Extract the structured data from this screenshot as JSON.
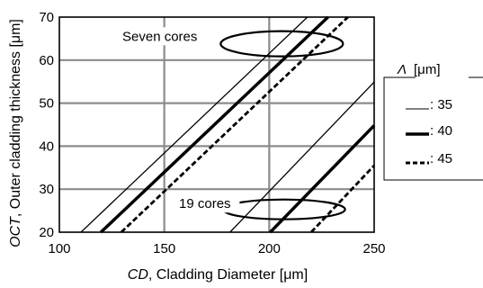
{
  "chart_data": {
    "type": "line",
    "title": "",
    "xlabel_italic": "CD",
    "xlabel_rest": ", Cladding Diameter [μm]",
    "ylabel_italic": "OCT",
    "ylabel_rest": ", Outer cladding thickness [μm]",
    "xlim": [
      100,
      250
    ],
    "ylim": [
      20,
      70
    ],
    "xticks": [
      100,
      150,
      200,
      250
    ],
    "yticks": [
      20,
      30,
      40,
      50,
      60,
      70
    ],
    "grid": true,
    "legend": {
      "title_symbol": "Λ",
      "title_unit": "[μm]",
      "placement": "right-outside",
      "entries": [
        {
          "label": ": 35",
          "style": "thin"
        },
        {
          "label": ": 40",
          "style": "thick"
        },
        {
          "label": ": 45",
          "style": "dashed"
        }
      ]
    },
    "groups": [
      {
        "label": "Seven cores",
        "series": [
          {
            "name": "35",
            "x": [
              110.3,
              218.2
            ],
            "y": [
              20,
              70
            ]
          },
          {
            "name": "40",
            "x": [
              119.8,
              228.0
            ],
            "y": [
              20,
              70
            ]
          },
          {
            "name": "45",
            "x": [
              129.5,
              237.5
            ],
            "y": [
              20,
              70
            ]
          }
        ]
      },
      {
        "label": "19 cores",
        "series": [
          {
            "name": "35",
            "x": [
              181.3,
              250.0
            ],
            "y": [
              20,
              54.9
            ]
          },
          {
            "name": "40",
            "x": [
              200.5,
              250.0
            ],
            "y": [
              20,
              44.8
            ]
          },
          {
            "name": "45",
            "x": [
              220.0,
              250.0
            ],
            "y": [
              20,
              35.5
            ]
          }
        ]
      }
    ],
    "annotations": [
      {
        "text": "Seven cores",
        "x": 130,
        "y": 64.5,
        "ellipse_center": [
          206,
          63.8
        ]
      },
      {
        "text": "19 cores",
        "x": 157,
        "y": 25.6,
        "ellipse_center": [
          207,
          25.3
        ]
      }
    ]
  }
}
